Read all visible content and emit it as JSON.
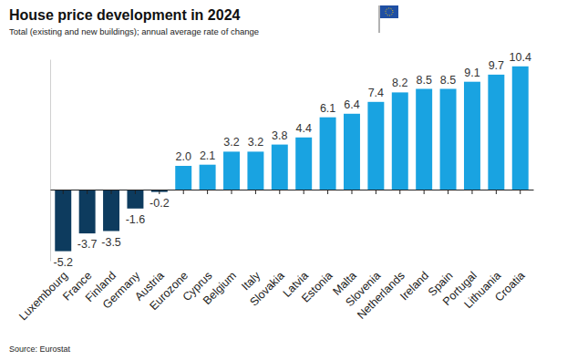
{
  "chart_data": {
    "type": "bar",
    "title": "House price development in 2024",
    "subtitle": "Total (existing and new buildings); annual average rate of change",
    "source": "Source: Eurostat",
    "categories": [
      "Luxembourg",
      "France",
      "Finland",
      "Germany",
      "Austria",
      "Eurozone",
      "Cyprus",
      "Belgium",
      "Italy",
      "Slovakia",
      "Latvia",
      "Estonia",
      "Malta",
      "Slovenia",
      "Netherlands",
      "Ireland",
      "Spain",
      "Portugal",
      "Lithuania",
      "Croatia"
    ],
    "values": [
      -5.2,
      -3.7,
      -3.5,
      -1.6,
      -0.2,
      2.0,
      2.1,
      3.2,
      3.2,
      3.8,
      4.4,
      6.1,
      6.4,
      7.4,
      8.2,
      8.5,
      8.5,
      9.1,
      9.7,
      10.4
    ],
    "value_labels": [
      "-5.2",
      "-3.7",
      "-3.5",
      "-1.6",
      "-0.2",
      "2.0",
      "2.1",
      "3.2",
      "3.2",
      "3.8",
      "4.4",
      "6.1",
      "6.4",
      "7.4",
      "8.2",
      "8.5",
      "8.5",
      "9.1",
      "9.7",
      "10.4"
    ],
    "colors": [
      "#0d3b5e",
      "#0d3b5e",
      "#0d3b5e",
      "#0d3b5e",
      "#0d3b5e",
      "#19a3e1",
      "#19a3e1",
      "#19a3e1",
      "#19a3e1",
      "#19a3e1",
      "#19a3e1",
      "#19a3e1",
      "#19a3e1",
      "#19a3e1",
      "#19a3e1",
      "#19a3e1",
      "#19a3e1",
      "#19a3e1",
      "#19a3e1",
      "#19a3e1"
    ],
    "ylim": [
      -6,
      11
    ],
    "data_labels": true,
    "tick_labels": "x",
    "grid": false
  }
}
